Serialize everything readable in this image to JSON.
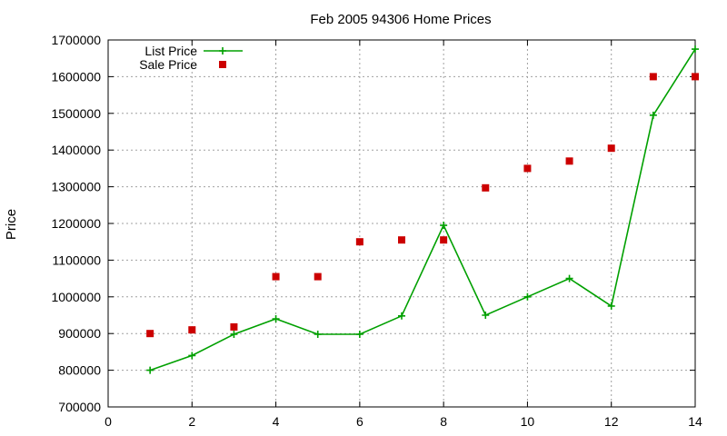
{
  "chart_data": {
    "type": "line",
    "title": "Feb 2005 94306 Home Prices",
    "xlabel": "",
    "ylabel": "Price",
    "xlim": [
      0,
      14
    ],
    "ylim": [
      700000,
      1700000
    ],
    "xticks": [
      0,
      2,
      4,
      6,
      8,
      10,
      12,
      14
    ],
    "yticks": [
      700000,
      800000,
      900000,
      1000000,
      1100000,
      1200000,
      1300000,
      1400000,
      1500000,
      1600000,
      1700000
    ],
    "grid": true,
    "legend_position": "top-left",
    "series": [
      {
        "name": "List Price",
        "style": "linespoints",
        "marker": "plus",
        "color": "#00a000",
        "x": [
          1,
          2,
          3,
          4,
          5,
          6,
          7,
          8,
          9,
          10,
          11,
          12,
          13,
          14
        ],
        "values": [
          800000,
          840000,
          898000,
          940000,
          898000,
          898000,
          948000,
          1195000,
          950000,
          1000000,
          1050000,
          975000,
          1495000,
          1675000
        ]
      },
      {
        "name": "Sale Price",
        "style": "points",
        "marker": "square",
        "color": "#cc0000",
        "x": [
          1,
          2,
          3,
          4,
          5,
          6,
          7,
          8,
          9,
          10,
          11,
          12,
          13,
          14
        ],
        "values": [
          900000,
          910000,
          918000,
          1055000,
          1055000,
          1150000,
          1155000,
          1155000,
          1297000,
          1350000,
          1370000,
          1405000,
          1600000,
          1600000
        ]
      }
    ]
  }
}
